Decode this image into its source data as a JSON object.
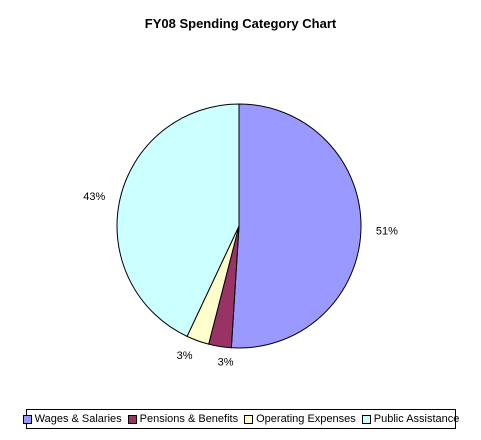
{
  "chart_data": {
    "type": "pie",
    "title": "FY08 Spending Category Chart",
    "slices": [
      {
        "name": "Wages & Salaries",
        "value": 51,
        "label": "51%",
        "color": "#9999FF"
      },
      {
        "name": "Pensions & Benefits",
        "value": 3,
        "label": "3%",
        "color": "#993366"
      },
      {
        "name": "Operating Expenses",
        "value": 3,
        "label": "3%",
        "color": "#FFFFCC"
      },
      {
        "name": "Public Assistance",
        "value": 43,
        "label": "43%",
        "color": "#CCFFFF"
      }
    ],
    "legend_position": "bottom"
  }
}
